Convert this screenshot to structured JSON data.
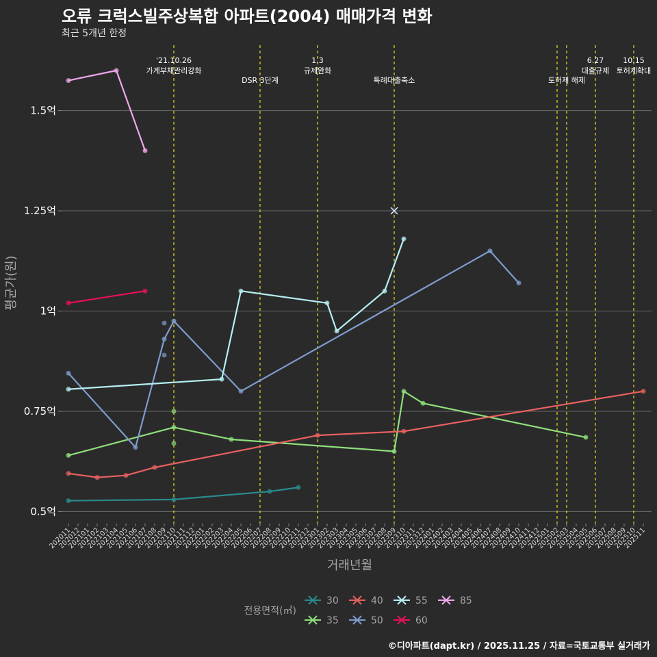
{
  "header": {
    "title": "오류 크럭스빌주상복합 아파트(2004) 매매가격 변화",
    "subtitle": "최근 5개년 한정"
  },
  "caption": "©디아파트(dapt.kr) / 2025.11.25 / 자료=국토교통부 실거래가",
  "chart_data": {
    "type": "line",
    "title": "오류 크럭스빌주상복합 아파트(2004) 매매가격 변화",
    "subtitle": "최근 5개년 한정",
    "xlabel": "거래년월",
    "ylabel": "평균가(원)",
    "ylim": [
      0.47,
      1.67
    ],
    "yticks": [
      {
        "value": 0.5,
        "label": "0.5억"
      },
      {
        "value": 0.75,
        "label": "0.75억"
      },
      {
        "value": 1.0,
        "label": "1억"
      },
      {
        "value": 1.25,
        "label": "1.25억"
      },
      {
        "value": 1.5,
        "label": "1.5억"
      }
    ],
    "x_categories": [
      "202011",
      "202012",
      "202101",
      "202102",
      "202103",
      "202104",
      "202105",
      "202106",
      "202107",
      "202108",
      "202109",
      "202110",
      "202111",
      "202112",
      "202201",
      "202202",
      "202203",
      "202204",
      "202205",
      "202206",
      "202207",
      "202208",
      "202209",
      "202210",
      "202211",
      "202212",
      "202301",
      "202302",
      "202303",
      "202304",
      "202305",
      "202306",
      "202307",
      "202308",
      "202309",
      "202310",
      "202311",
      "202312",
      "202401",
      "202402",
      "202403",
      "202404",
      "202405",
      "202406",
      "202407",
      "202408",
      "202409",
      "202410",
      "202411",
      "202412",
      "202501",
      "202502",
      "202503",
      "202504",
      "202505",
      "202506",
      "202507",
      "202508",
      "202509",
      "202510",
      "202511"
    ],
    "events": [
      {
        "x": "202110",
        "label": "'21.10.26\n가계부채관리강화"
      },
      {
        "x": "202207",
        "label": "DSR 3단계"
      },
      {
        "x": "202301",
        "label": "1.3\n규제완화"
      },
      {
        "x": "202309",
        "label": "특례대출축소"
      },
      {
        "x": "202502",
        "label": ""
      },
      {
        "x": "202503",
        "label": "토허제 해제"
      },
      {
        "x": "202506",
        "label": "6.27\n대출규제"
      },
      {
        "x": "202510",
        "label": "10.15\n토허제확대"
      }
    ],
    "series": [
      {
        "name": "30",
        "color": "#2a8a8c",
        "points": [
          [
            "202011",
            0.527
          ],
          [
            "202110",
            0.53
          ],
          [
            "202208",
            0.55
          ],
          [
            "202211",
            0.56
          ]
        ],
        "extra_points": []
      },
      {
        "name": "35",
        "color": "#8ee07a",
        "points": [
          [
            "202011",
            0.64
          ],
          [
            "202110",
            0.71
          ],
          [
            "202204",
            0.68
          ],
          [
            "202309",
            0.65
          ],
          [
            "202310",
            0.8
          ],
          [
            "202312",
            0.77
          ],
          [
            "202505",
            0.685
          ]
        ],
        "extra_points": [
          [
            "202110",
            0.75
          ],
          [
            "202110",
            0.67
          ]
        ]
      },
      {
        "name": "40",
        "color": "#e8615f",
        "points": [
          [
            "202011",
            0.595
          ],
          [
            "202102",
            0.585
          ],
          [
            "202105",
            0.59
          ],
          [
            "202108",
            0.61
          ],
          [
            "202301",
            0.69
          ],
          [
            "202310",
            0.7
          ],
          [
            "202511",
            0.8
          ]
        ],
        "extra_points": []
      },
      {
        "name": "50",
        "color": "#7f9ccc",
        "points": [
          [
            "202011",
            0.845
          ],
          [
            "202106",
            0.66
          ],
          [
            "202109",
            0.93
          ],
          [
            "202110",
            0.975
          ],
          [
            "202205",
            0.8
          ],
          [
            "202407",
            1.15
          ],
          [
            "202410",
            1.07
          ]
        ],
        "extra_points": [
          [
            "202109",
            0.97
          ],
          [
            "202109",
            0.89
          ]
        ]
      },
      {
        "name": "55",
        "color": "#b6f0f2",
        "points": [
          [
            "202011",
            0.805
          ],
          [
            "202203",
            0.83
          ],
          [
            "202205",
            1.05
          ],
          [
            "202302",
            1.02
          ],
          [
            "202303",
            0.95
          ],
          [
            "202308",
            1.05
          ],
          [
            "202310",
            1.18
          ]
        ],
        "extra_points": [
          [
            "202309",
            1.25
          ]
        ]
      },
      {
        "name": "60",
        "color": "#e8105c",
        "points": [
          [
            "202011",
            1.02
          ],
          [
            "202107",
            1.05
          ]
        ],
        "extra_points": []
      },
      {
        "name": "85",
        "color": "#f0a8ea",
        "points": [
          [
            "202011",
            1.575
          ],
          [
            "202104",
            1.6
          ],
          [
            "202107",
            1.4
          ]
        ],
        "extra_points": []
      }
    ],
    "legend": {
      "title": "전용면적(㎡)",
      "position": "bottom"
    }
  }
}
